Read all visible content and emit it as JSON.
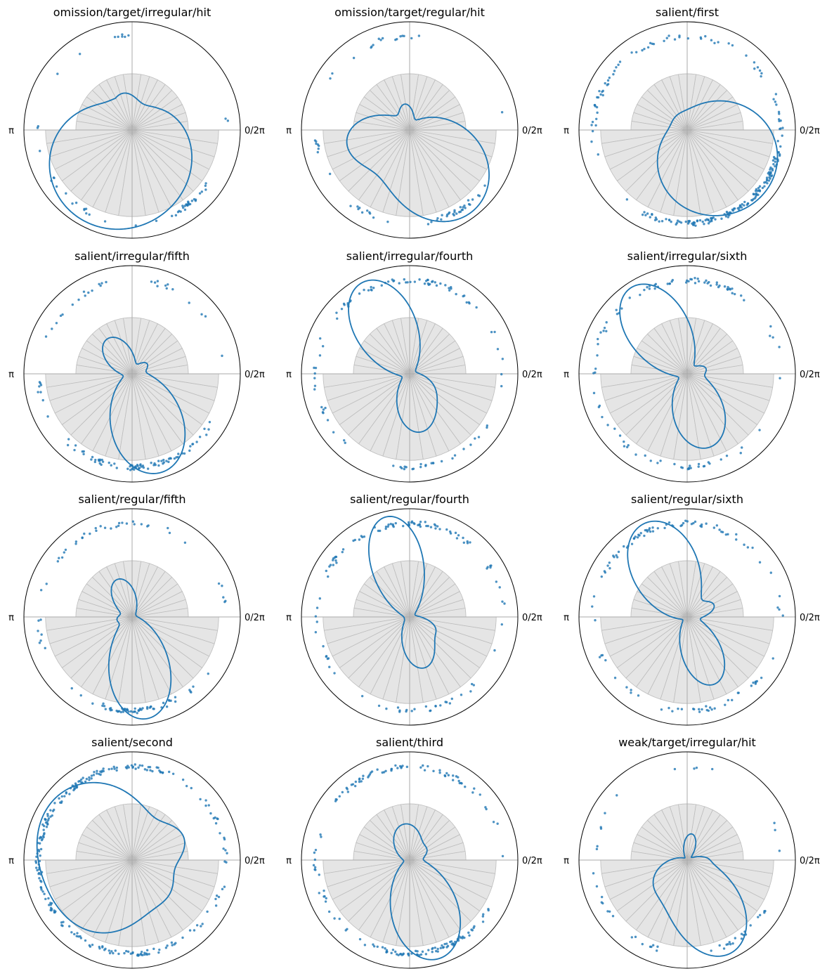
{
  "chart_data": {
    "type": "polar",
    "description_axis": {
      "right_label": "0/2π",
      "left_label": "π"
    },
    "style": {
      "curve_color": "#1f77b4",
      "dot_color": "#1f77b4",
      "histogram_fill": "#e5e5e5",
      "histogram_edge": "#bdbdbd",
      "frame_color": "#000000",
      "axis_line_color": "#aaaaaa"
    },
    "histogram_bins": 40,
    "histogram_radius_upper": 0.52,
    "histogram_radius_lower": 0.8,
    "panels": [
      {
        "title": "omission/target/irregular/hit",
        "curve": {
          "components": [
            [
              5.2,
              1.55,
              1.0
            ],
            [
              3.8,
              1.05,
              0.9
            ],
            [
              1.8,
              0.35,
              0.27
            ]
          ],
          "base": 0.02,
          "scale": 0.95
        },
        "dots": {
          "clusters": [
            [
              5.4,
              0.2,
              28
            ],
            [
              4.1,
              0.4,
              10
            ],
            [
              3.5,
              0.3,
              6
            ],
            [
              1.7,
              0.3,
              7
            ],
            [
              2.5,
              0.1,
              1
            ],
            [
              0.1,
              0.1,
              2
            ],
            [
              4.71,
              0.05,
              1
            ]
          ],
          "seed": 11
        }
      },
      {
        "title": "omission/target/regular/hit",
        "curve": {
          "components": [
            [
              5.35,
              0.85,
              0.9
            ],
            [
              3.3,
              0.55,
              0.5
            ],
            [
              1.75,
              0.35,
              0.2
            ]
          ],
          "base": 0.02,
          "scale": 0.95
        },
        "dots": {
          "clusters": [
            [
              5.3,
              0.3,
              30
            ],
            [
              4.2,
              0.3,
              10
            ],
            [
              2.2,
              0.4,
              10
            ],
            [
              3.4,
              0.25,
              8
            ],
            [
              1.6,
              0.3,
              6
            ],
            [
              0.1,
              0.1,
              1
            ]
          ],
          "seed": 23
        }
      },
      {
        "title": "salient/first",
        "curve": {
          "components": [
            [
              5.9,
              0.85,
              0.95
            ],
            [
              4.6,
              0.75,
              0.5
            ],
            [
              2.2,
              0.9,
              0.12
            ]
          ],
          "base": 0.08,
          "scale": 0.92
        },
        "dots": {
          "clusters": [
            [
              5.6,
              0.7,
              110
            ],
            [
              4.6,
              0.4,
              40
            ],
            [
              2.4,
              0.8,
              40
            ],
            [
              1.2,
              0.6,
              20
            ]
          ],
          "seed": 37
        }
      },
      {
        "title": "salient/irregular/fifth",
        "curve": {
          "components": [
            [
              5.0,
              0.6,
              0.92
            ],
            [
              2.2,
              0.5,
              0.36
            ],
            [
              0.6,
              0.3,
              0.12
            ]
          ],
          "base": 0.04,
          "scale": 0.95
        },
        "dots": {
          "clusters": [
            [
              5.0,
              0.45,
              55
            ],
            [
              4.3,
              0.3,
              20
            ],
            [
              2.2,
              0.5,
              15
            ],
            [
              3.3,
              0.3,
              8
            ],
            [
              1.2,
              0.3,
              8
            ],
            [
              0.5,
              0.3,
              4
            ]
          ],
          "seed": 41
        }
      },
      {
        "title": "salient/irregular/fourth",
        "curve": {
          "components": [
            [
              2.05,
              0.5,
              0.82
            ],
            [
              4.9,
              0.5,
              0.45
            ],
            [
              5.8,
              0.3,
              0.1
            ]
          ],
          "base": 0.05,
          "scale": 0.95
        },
        "dots": {
          "clusters": [
            [
              2.0,
              0.8,
              45
            ],
            [
              1.2,
              0.4,
              15
            ],
            [
              4.9,
              0.6,
              25
            ],
            [
              3.4,
              0.5,
              12
            ],
            [
              0.2,
              0.3,
              5
            ]
          ],
          "seed": 53
        }
      },
      {
        "title": "salient/irregular/sixth",
        "curve": {
          "components": [
            [
              2.15,
              0.5,
              0.75
            ],
            [
              5.0,
              0.55,
              0.55
            ],
            [
              0.3,
              0.3,
              0.1
            ]
          ],
          "base": 0.04,
          "scale": 0.95
        },
        "dots": {
          "clusters": [
            [
              2.0,
              0.8,
              45
            ],
            [
              1.2,
              0.3,
              12
            ],
            [
              4.9,
              0.5,
              25
            ],
            [
              3.6,
              0.5,
              12
            ],
            [
              0.4,
              0.3,
              5
            ]
          ],
          "seed": 67
        }
      },
      {
        "title": "salient/regular/fifth",
        "curve": {
          "components": [
            [
              4.85,
              0.5,
              0.98
            ],
            [
              1.95,
              0.45,
              0.36
            ],
            [
              3.3,
              0.3,
              0.1
            ]
          ],
          "base": 0.04,
          "scale": 0.95
        },
        "dots": {
          "clusters": [
            [
              5.0,
              0.5,
              45
            ],
            [
              1.9,
              0.6,
              30
            ],
            [
              3.3,
              0.3,
              8
            ],
            [
              0.3,
              0.3,
              5
            ],
            [
              4.4,
              0.3,
              12
            ]
          ],
          "seed": 79
        }
      },
      {
        "title": "salient/regular/fourth",
        "curve": {
          "components": [
            [
              1.8,
              0.42,
              0.92
            ],
            [
              5.0,
              0.45,
              0.45
            ],
            [
              5.9,
              0.25,
              0.15
            ]
          ],
          "base": 0.05,
          "scale": 0.95
        },
        "dots": {
          "clusters": [
            [
              1.9,
              0.8,
              55
            ],
            [
              1.2,
              0.4,
              15
            ],
            [
              4.9,
              0.6,
              25
            ],
            [
              3.4,
              0.5,
              12
            ],
            [
              0.3,
              0.3,
              6
            ]
          ],
          "seed": 83
        }
      },
      {
        "title": "salient/regular/sixth",
        "curve": {
          "components": [
            [
              2.0,
              0.55,
              0.75
            ],
            [
              5.1,
              0.45,
              0.52
            ],
            [
              0.4,
              0.3,
              0.18
            ]
          ],
          "base": 0.03,
          "scale": 0.95
        },
        "dots": {
          "clusters": [
            [
              2.1,
              0.7,
              50
            ],
            [
              1.1,
              0.4,
              15
            ],
            [
              5.0,
              0.6,
              30
            ],
            [
              3.8,
              0.4,
              8
            ],
            [
              0.2,
              0.3,
              5
            ]
          ],
          "seed": 97
        }
      },
      {
        "title": "salient/second",
        "curve": {
          "components": [
            [
              2.5,
              0.85,
              0.45
            ],
            [
              4.2,
              0.7,
              0.3
            ],
            [
              0.4,
              0.4,
              0.18
            ],
            [
              5.6,
              0.4,
              0.12
            ]
          ],
          "base": 0.14,
          "scale": 0.92
        },
        "dots": {
          "clusters": [
            [
              2.3,
              0.9,
              120
            ],
            [
              4.7,
              0.7,
              60
            ],
            [
              3.4,
              0.5,
              30
            ],
            [
              0.7,
              0.6,
              20
            ],
            [
              5.9,
              0.3,
              10
            ]
          ],
          "seed": 101
        }
      },
      {
        "title": "salient/third",
        "curve": {
          "components": [
            [
              5.0,
              0.55,
              0.92
            ],
            [
              1.7,
              0.6,
              0.3
            ],
            [
              0.5,
              0.3,
              0.1
            ]
          ],
          "base": 0.04,
          "scale": 0.95
        },
        "dots": {
          "clusters": [
            [
              4.9,
              0.6,
              80
            ],
            [
              2.0,
              0.7,
              45
            ],
            [
              3.4,
              0.4,
              15
            ],
            [
              0.6,
              0.5,
              12
            ],
            [
              1.2,
              0.4,
              10
            ]
          ],
          "seed": 113
        }
      },
      {
        "title": "weak/target/irregular/hit",
        "curve": {
          "components": [
            [
              5.15,
              0.55,
              0.98
            ],
            [
              3.8,
              0.5,
              0.35
            ],
            [
              1.4,
              0.35,
              0.24
            ],
            [
              0.1,
              0.2,
              0.1
            ]
          ],
          "base": 0.02,
          "scale": 0.95
        },
        "dots": {
          "clusters": [
            [
              5.4,
              0.3,
              20
            ],
            [
              4.3,
              0.3,
              8
            ],
            [
              3.5,
              0.4,
              8
            ],
            [
              2.6,
              0.4,
              6
            ],
            [
              1.5,
              0.25,
              4
            ],
            [
              0.3,
              0.2,
              3
            ]
          ],
          "seed": 127
        }
      }
    ]
  }
}
